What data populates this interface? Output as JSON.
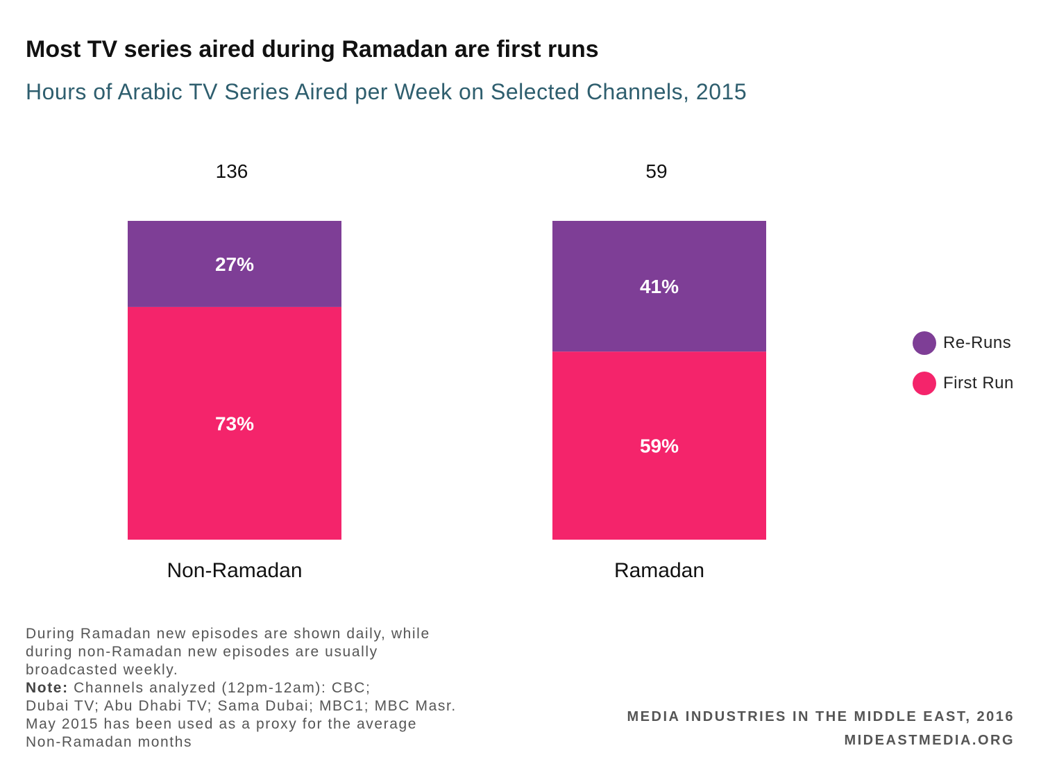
{
  "header": {
    "title": "Most TV series aired during Ramadan are first runs",
    "subtitle": "Hours of Arabic TV Series Aired per Week on Selected Channels, 2015"
  },
  "chart_data": {
    "type": "bar",
    "stacked": true,
    "normalized": true,
    "title": "Most TV series aired during Ramadan are first runs",
    "subtitle": "Hours of Arabic TV Series Aired per Week on Selected Channels, 2015",
    "categories": [
      "Non-Ramadan",
      "Ramadan"
    ],
    "totals": [
      136,
      59
    ],
    "total_labels": [
      "136",
      "59"
    ],
    "series": [
      {
        "name": "First Run",
        "values": [
          73,
          59
        ],
        "labels": [
          "73%",
          "59%"
        ],
        "color": "#f4246b"
      },
      {
        "name": "Re-Runs",
        "values": [
          27,
          41
        ],
        "labels": [
          "27%",
          "41%"
        ],
        "color": "#7e3e96"
      }
    ],
    "ylim": [
      0,
      100
    ],
    "grid": false,
    "legend_position": "right"
  },
  "legend": {
    "items": [
      {
        "label": "Re-Runs",
        "color": "#7e3e96"
      },
      {
        "label": "First Run",
        "color": "#f4246b"
      }
    ]
  },
  "footnote": {
    "lines": [
      "During Ramadan new episodes are shown daily, while",
      "during non-Ramadan new episodes are usually",
      "broadcasted weekly."
    ],
    "note_label": "Note:",
    "note_first": " Channels analyzed (12pm-12am): CBC;",
    "note_lines": [
      "Dubai TV; Abu Dhabi TV; Sama Dubai; MBC1; MBC Masr.",
      "May 2015 has been used as a proxy for the average",
      "Non-Ramadan months"
    ]
  },
  "credit": {
    "line1": "MEDIA INDUSTRIES IN THE MIDDLE EAST, 2016",
    "line2": "MIDEASTMEDIA.ORG"
  }
}
